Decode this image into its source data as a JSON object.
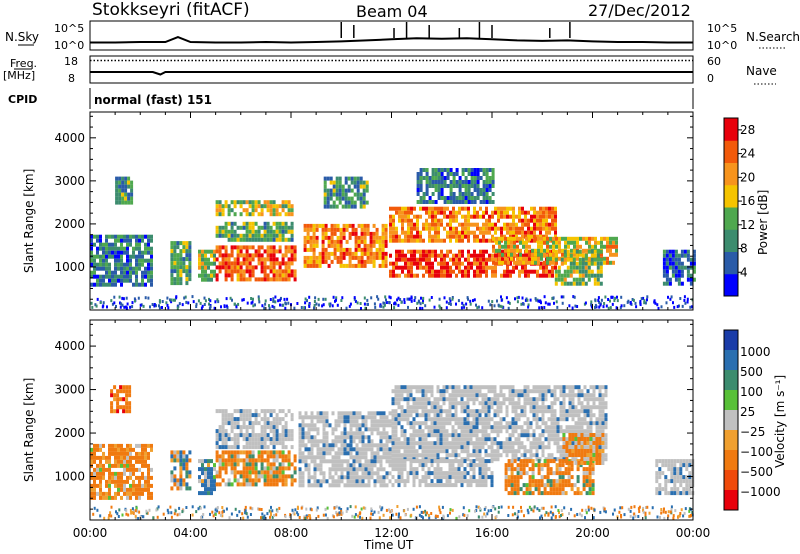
{
  "header": {
    "station": "Stokkseyri (fitACF)",
    "beam": "Beam 04",
    "date": "27/Dec/2012"
  },
  "panel_labels": {
    "nsky": "N.Sky",
    "nsky_ticks": [
      "10^5",
      "10^0"
    ],
    "nsearch": "N.Search",
    "nsearch_ticks": [
      "10^5",
      "10^0"
    ],
    "freq": "Freq.",
    "freq_unit": "[MHz]",
    "freq_ticks": [
      "18",
      "8"
    ],
    "nave": "Nave",
    "nave_ticks": [
      "60",
      "0"
    ],
    "cpid": "CPID",
    "cpid_value": "normal (fast) 151"
  },
  "colors": {
    "power_scale": [
      "#0000ff",
      "#2a5ba8",
      "#3c8c6e",
      "#4fa84f",
      "#f5c400",
      "#f7941d",
      "#f25a0a",
      "#e8000b"
    ],
    "velocity_scale": [
      "#1a3ca8",
      "#2a6fb0",
      "#3c8c6e",
      "#58c038",
      "#c0c0c0",
      "#f0a030",
      "#f07a10",
      "#f04a0a",
      "#e8000b"
    ],
    "ground_scatter": "#c0c0c0"
  },
  "chart_data": [
    {
      "type": "line",
      "name": "nsky-nsearch",
      "x": [
        0,
        1,
        2,
        3,
        3.5,
        4,
        5,
        6,
        7,
        8,
        9,
        10,
        11,
        12,
        13,
        14,
        15,
        16,
        17,
        18,
        19,
        20,
        21,
        22,
        23,
        24
      ],
      "y_nsky_log": [
        1.2,
        1.2,
        1.3,
        1.3,
        2.2,
        1.3,
        1.2,
        1.2,
        1.3,
        1.2,
        1.3,
        1.4,
        1.6,
        1.8,
        2.0,
        1.9,
        2.0,
        1.8,
        1.6,
        1.5,
        1.6,
        1.4,
        1.3,
        1.3,
        1.2,
        1.2
      ],
      "ylim": [
        0,
        5
      ]
    },
    {
      "type": "line",
      "name": "frequency-nave",
      "x": [
        0,
        2.5,
        2.8,
        3,
        24
      ],
      "freq_mhz": [
        12,
        12,
        11,
        12,
        12
      ],
      "nave": [
        30,
        30,
        30,
        30,
        30
      ],
      "ylim_freq": [
        8,
        18
      ],
      "ylim_nave": [
        0,
        60
      ]
    },
    {
      "type": "heatmap",
      "name": "power",
      "xlabel": "Time UT",
      "ylabel": "Slant Range [km]",
      "xlim": [
        0,
        24
      ],
      "ylim": [
        0,
        4600
      ],
      "xticks": [
        "00:00",
        "04:00",
        "08:00",
        "12:00",
        "16:00",
        "20:00",
        "00:00"
      ],
      "yticks": [
        1000,
        2000,
        3000,
        4000
      ],
      "colorbar_label": "Power [dB]",
      "colorbar_ticks": [
        4,
        8,
        12,
        16,
        20,
        24,
        28
      ],
      "colorbar_range": [
        0,
        30
      ],
      "regions": [
        {
          "t0": 0.0,
          "t1": 2.5,
          "r0": 550,
          "r1": 1750,
          "level": 8
        },
        {
          "t0": 1.0,
          "t1": 1.6,
          "r0": 2500,
          "r1": 3100,
          "level": 10
        },
        {
          "t0": 3.2,
          "t1": 4.0,
          "r0": 600,
          "r1": 1600,
          "level": 12
        },
        {
          "t0": 4.3,
          "t1": 4.9,
          "r0": 700,
          "r1": 1400,
          "level": 16
        },
        {
          "t0": 5.0,
          "t1": 8.2,
          "r0": 750,
          "r1": 1500,
          "level": 24
        },
        {
          "t0": 5.0,
          "t1": 8.0,
          "r0": 1650,
          "r1": 2050,
          "level": 12
        },
        {
          "t0": 5.0,
          "t1": 8.0,
          "r0": 2200,
          "r1": 2550,
          "level": 16
        },
        {
          "t0": 8.5,
          "t1": 11.8,
          "r0": 1000,
          "r1": 2000,
          "level": 22
        },
        {
          "t0": 9.3,
          "t1": 11.0,
          "r0": 2400,
          "r1": 3100,
          "level": 10
        },
        {
          "t0": 11.9,
          "t1": 18.5,
          "r0": 1600,
          "r1": 2400,
          "level": 22
        },
        {
          "t0": 11.9,
          "t1": 18.5,
          "r0": 800,
          "r1": 1400,
          "level": 26
        },
        {
          "t0": 13.0,
          "t1": 16.0,
          "r0": 2500,
          "r1": 3300,
          "level": 8
        },
        {
          "t0": 16.0,
          "t1": 21.0,
          "r0": 1100,
          "r1": 1700,
          "level": 18
        },
        {
          "t0": 18.5,
          "t1": 20.3,
          "r0": 600,
          "r1": 1400,
          "level": 14
        },
        {
          "t0": 22.8,
          "t1": 24.0,
          "r0": 600,
          "r1": 1400,
          "level": 6
        }
      ]
    },
    {
      "type": "heatmap",
      "name": "velocity",
      "xlabel": "Time UT",
      "ylabel": "Slant Range [km]",
      "xlim": [
        0,
        24
      ],
      "ylim": [
        0,
        4600
      ],
      "xticks": [
        "00:00",
        "04:00",
        "08:00",
        "12:00",
        "16:00",
        "20:00",
        "00:00"
      ],
      "yticks": [
        1000,
        2000,
        3000,
        4000
      ],
      "colorbar_label": "Velocity [m s⁻¹]",
      "colorbar_ticks": [
        "1000",
        "500",
        "100",
        "25",
        "−25",
        "−100",
        "−500",
        "−1000"
      ],
      "regions": [
        {
          "t0": 0.0,
          "t1": 2.5,
          "r0": 550,
          "r1": 1750,
          "v": -200
        },
        {
          "t0": 0.8,
          "t1": 1.6,
          "r0": 2500,
          "r1": 3100,
          "v": -300
        },
        {
          "t0": 3.2,
          "t1": 4.0,
          "r0": 700,
          "r1": 1600,
          "v": 50
        },
        {
          "t0": 4.3,
          "t1": 4.9,
          "r0": 600,
          "r1": 1400,
          "v": 200
        },
        {
          "t0": 5.0,
          "t1": 8.2,
          "r0": 800,
          "r1": 1600,
          "v": -150
        },
        {
          "t0": 5.0,
          "t1": 8.0,
          "r0": 1650,
          "r1": 2550,
          "v": 0
        },
        {
          "t0": 8.3,
          "t1": 12.0,
          "r0": 800,
          "r1": 2500,
          "v": 0
        },
        {
          "t0": 12.0,
          "t1": 20.5,
          "r0": 1400,
          "r1": 3100,
          "v": 0
        },
        {
          "t0": 12.0,
          "t1": 16.0,
          "r0": 800,
          "r1": 1400,
          "v": 0
        },
        {
          "t0": 16.5,
          "t1": 20.0,
          "r0": 650,
          "r1": 1400,
          "v": -150
        },
        {
          "t0": 18.8,
          "t1": 20.4,
          "r0": 1300,
          "r1": 2000,
          "v": -200
        },
        {
          "t0": 22.5,
          "t1": 24.0,
          "r0": 600,
          "r1": 1400,
          "v": 0
        }
      ]
    }
  ]
}
